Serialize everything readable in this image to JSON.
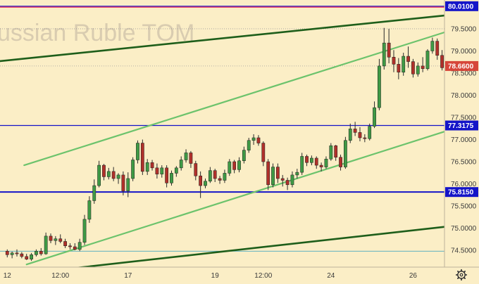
{
  "chart_data": {
    "type": "candlestick",
    "title": "ussian Ruble TOM",
    "colors": {
      "background": "#fbeec6",
      "up": "#3f9a45",
      "down": "#b0302a",
      "wick": "#2a2a2a",
      "green_channel": "#6cc36c",
      "dark_channel": "#1e5e1a",
      "level_blue": "#1414c8",
      "level_red": "#e8375e",
      "price_tag": "#d6463a",
      "level_tag": "#1414c8",
      "cyan_level": "#4aa8c0"
    },
    "y_ticks": [
      "79.5000",
      "79.0000",
      "78.5000",
      "78.0000",
      "77.5000",
      "77.0000",
      "76.5000",
      "76.0000",
      "75.5000",
      "75.0000",
      "74.5000"
    ],
    "x_ticks": [
      {
        "label": "12",
        "t": 0
      },
      {
        "label": "12:00",
        "t": 11
      },
      {
        "label": "17",
        "t": 25
      },
      {
        "label": "19",
        "t": 43
      },
      {
        "label": "12:00",
        "t": 53
      },
      {
        "label": "24",
        "t": 67
      },
      {
        "label": "26",
        "t": 84
      }
    ],
    "t_range": [
      -1.5,
      90.5
    ],
    "y_range": [
      74.12,
      80.15
    ],
    "horizontal_levels": [
      {
        "name": "red-top-level",
        "value": 79.99,
        "color": "#e8375e",
        "width": 1.6
      },
      {
        "name": "upper-limit-level",
        "value": 80.01,
        "color": "#1414c8",
        "width": 1.2,
        "tag": "80.0100"
      },
      {
        "name": "resistance-level",
        "value": 77.3175,
        "color": "#1414c8",
        "width": 1.3,
        "tag": "77.3175"
      },
      {
        "name": "support-level",
        "value": 75.815,
        "color": "#1414c8",
        "width": 2.0,
        "tag": "75.8150"
      },
      {
        "name": "cyan-level",
        "value": 74.48,
        "color": "#4aa8c0",
        "width": 0.8
      }
    ],
    "trend_lines": [
      {
        "name": "upper-green-line",
        "t1": 3.5,
        "v1": 76.42,
        "t2": 90.5,
        "v2": 79.42,
        "color": "#6cc36c",
        "width": 2.2
      },
      {
        "name": "lower-green-line",
        "t1": 4.0,
        "v1": 74.18,
        "t2": 90.5,
        "v2": 77.18,
        "color": "#6cc36c",
        "width": 2.2
      },
      {
        "name": "upper-dark-line",
        "t1": -1.5,
        "v1": 78.77,
        "t2": 90.5,
        "v2": 79.8,
        "color": "#1e5e1a",
        "width": 2.6
      },
      {
        "name": "lower-dark-line",
        "t1": 4.2,
        "v1": 73.98,
        "t2": 90.5,
        "v2": 75.03,
        "color": "#1e5e1a",
        "width": 2.6
      }
    ],
    "current_price": {
      "value": 78.66,
      "label": "78.6600"
    },
    "dotted_levels": [
      79.5,
      78.66
    ],
    "ohlc": [
      [
        74.48,
        74.52,
        74.34,
        74.4
      ],
      [
        74.4,
        74.47,
        74.32,
        74.44
      ],
      [
        74.44,
        74.52,
        74.36,
        74.42
      ],
      [
        74.42,
        74.46,
        74.32,
        74.36
      ],
      [
        74.36,
        74.42,
        74.28,
        74.3
      ],
      [
        74.3,
        74.44,
        74.26,
        74.4
      ],
      [
        74.4,
        74.52,
        74.36,
        74.48
      ],
      [
        74.48,
        74.55,
        74.38,
        74.42
      ],
      [
        74.42,
        74.9,
        74.4,
        74.82
      ],
      [
        74.82,
        74.88,
        74.66,
        74.72
      ],
      [
        74.72,
        74.82,
        74.62,
        74.76
      ],
      [
        74.76,
        74.86,
        74.66,
        74.7
      ],
      [
        74.7,
        74.76,
        74.55,
        74.6
      ],
      [
        74.6,
        74.66,
        74.52,
        74.58
      ],
      [
        74.58,
        74.66,
        74.5,
        74.52
      ],
      [
        74.52,
        74.76,
        74.48,
        74.68
      ],
      [
        74.68,
        75.3,
        74.62,
        75.2
      ],
      [
        75.2,
        75.72,
        75.12,
        75.62
      ],
      [
        75.62,
        76.1,
        75.55,
        75.96
      ],
      [
        75.96,
        76.52,
        75.92,
        76.42
      ],
      [
        76.42,
        76.45,
        76.08,
        76.16
      ],
      [
        76.16,
        76.36,
        76.1,
        76.28
      ],
      [
        76.28,
        76.38,
        76.06,
        76.12
      ],
      [
        76.12,
        76.24,
        76.0,
        76.2
      ],
      [
        76.2,
        76.28,
        75.74,
        75.84
      ],
      [
        75.84,
        76.26,
        75.7,
        76.12
      ],
      [
        76.12,
        76.6,
        76.06,
        76.54
      ],
      [
        76.54,
        76.98,
        76.46,
        76.92
      ],
      [
        76.92,
        77.0,
        76.2,
        76.28
      ],
      [
        76.28,
        76.56,
        76.2,
        76.48
      ],
      [
        76.48,
        76.54,
        76.3,
        76.36
      ],
      [
        76.36,
        76.46,
        76.12,
        76.22
      ],
      [
        76.22,
        76.42,
        76.14,
        76.36
      ],
      [
        76.36,
        76.42,
        75.92,
        76.02
      ],
      [
        76.02,
        76.3,
        75.96,
        76.24
      ],
      [
        76.24,
        76.4,
        76.16,
        76.36
      ],
      [
        76.36,
        76.62,
        76.3,
        76.54
      ],
      [
        76.54,
        76.78,
        76.48,
        76.7
      ],
      [
        76.7,
        76.74,
        76.36,
        76.46
      ],
      [
        76.46,
        76.52,
        76.08,
        76.18
      ],
      [
        76.18,
        76.28,
        75.68,
        75.96
      ],
      [
        75.96,
        76.12,
        75.9,
        76.06
      ],
      [
        76.06,
        76.38,
        76.02,
        76.3
      ],
      [
        76.3,
        76.34,
        76.04,
        76.12
      ],
      [
        76.12,
        76.18,
        76.0,
        76.08
      ],
      [
        76.08,
        76.32,
        76.02,
        76.24
      ],
      [
        76.24,
        76.56,
        76.18,
        76.5
      ],
      [
        76.5,
        76.54,
        76.24,
        76.32
      ],
      [
        76.32,
        76.6,
        76.26,
        76.52
      ],
      [
        76.52,
        76.84,
        76.46,
        76.76
      ],
      [
        76.76,
        77.04,
        76.7,
        76.98
      ],
      [
        76.98,
        77.12,
        76.88,
        77.04
      ],
      [
        77.04,
        77.1,
        76.86,
        76.92
      ],
      [
        76.92,
        76.96,
        76.4,
        76.5
      ],
      [
        76.5,
        76.56,
        75.86,
        75.98
      ],
      [
        75.98,
        76.46,
        75.92,
        76.38
      ],
      [
        76.38,
        76.46,
        76.02,
        76.12
      ],
      [
        76.12,
        76.2,
        75.94,
        76.08
      ],
      [
        76.08,
        76.14,
        75.86,
        75.98
      ],
      [
        75.98,
        76.28,
        75.92,
        76.2
      ],
      [
        76.2,
        76.34,
        76.12,
        76.26
      ],
      [
        76.26,
        76.7,
        76.2,
        76.62
      ],
      [
        76.62,
        76.66,
        76.4,
        76.48
      ],
      [
        76.48,
        76.64,
        76.42,
        76.58
      ],
      [
        76.58,
        76.62,
        76.34,
        76.42
      ],
      [
        76.42,
        76.48,
        76.28,
        76.38
      ],
      [
        76.38,
        76.62,
        76.34,
        76.56
      ],
      [
        76.56,
        76.92,
        76.52,
        76.86
      ],
      [
        76.86,
        76.88,
        76.52,
        76.6
      ],
      [
        76.6,
        76.66,
        76.3,
        76.38
      ],
      [
        76.38,
        77.06,
        76.34,
        76.98
      ],
      [
        76.98,
        77.36,
        76.92,
        77.24
      ],
      [
        77.24,
        77.4,
        77.08,
        77.16
      ],
      [
        77.16,
        77.28,
        76.96,
        77.04
      ],
      [
        77.04,
        77.12,
        76.94,
        77.02
      ],
      [
        77.02,
        77.36,
        76.98,
        77.3
      ],
      [
        77.3,
        77.86,
        77.26,
        77.72
      ],
      [
        77.72,
        78.82,
        77.66,
        78.66
      ],
      [
        78.66,
        79.52,
        78.58,
        79.18
      ],
      [
        79.18,
        79.5,
        78.72,
        78.86
      ],
      [
        78.86,
        79.02,
        78.52,
        78.7
      ],
      [
        78.7,
        78.84,
        78.36,
        78.52
      ],
      [
        78.52,
        78.96,
        78.44,
        78.88
      ],
      [
        78.88,
        79.1,
        78.62,
        78.76
      ],
      [
        78.76,
        78.82,
        78.4,
        78.48
      ],
      [
        78.48,
        78.74,
        78.42,
        78.66
      ],
      [
        78.66,
        78.86,
        78.52,
        78.6
      ],
      [
        78.6,
        79.04,
        78.56,
        79.0
      ],
      [
        79.0,
        79.3,
        78.94,
        79.22
      ],
      [
        79.22,
        79.28,
        78.8,
        78.9
      ],
      [
        78.9,
        79.02,
        78.56,
        78.62
      ],
      [
        78.62,
        78.76,
        78.54,
        78.66
      ]
    ]
  }
}
